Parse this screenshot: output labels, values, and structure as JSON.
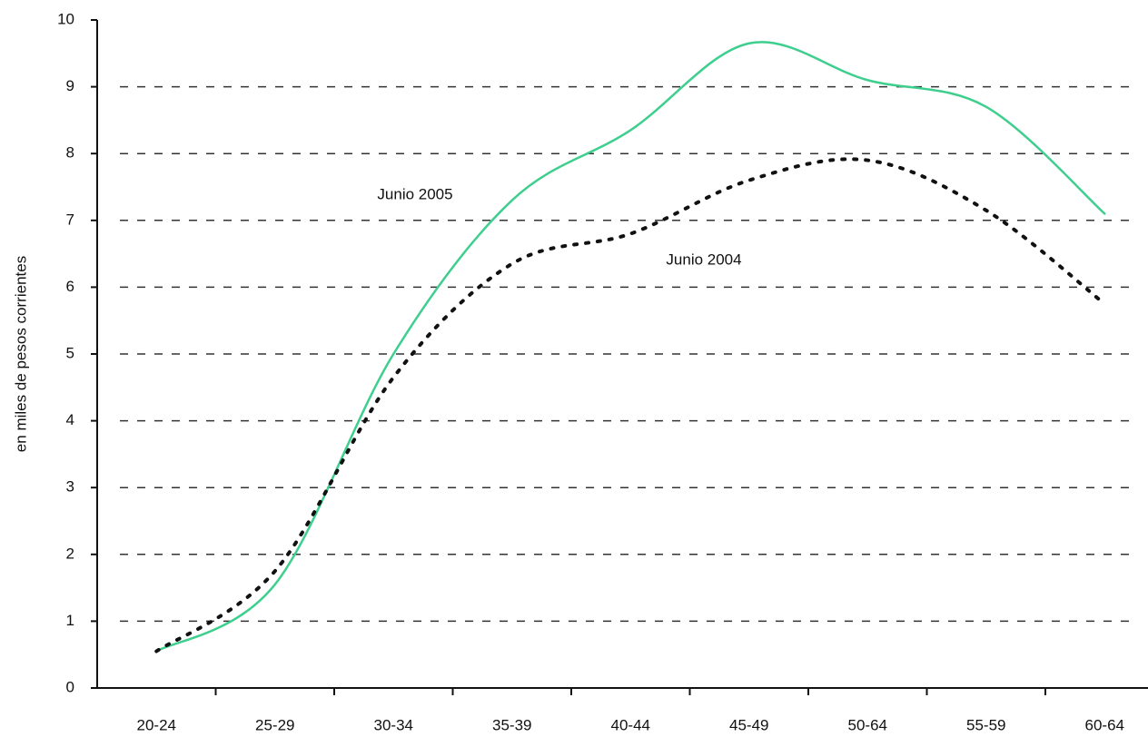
{
  "chart_data": {
    "type": "line",
    "y_label": "en miles de pesos corrientes",
    "categories": [
      "20-24",
      "25-29",
      "30-34",
      "35-39",
      "40-44",
      "45-49",
      "50-64",
      "55-59",
      "60-64"
    ],
    "series": [
      {
        "name": "Junio 2005",
        "color": "#3ecf8e",
        "style": "solid",
        "values": [
          0.55,
          1.55,
          5.0,
          7.3,
          8.35,
          9.65,
          9.1,
          8.7,
          7.1
        ]
      },
      {
        "name": "Junio 2004",
        "color": "#111111",
        "style": "dotted",
        "values": [
          0.55,
          1.75,
          4.65,
          6.35,
          6.8,
          7.6,
          7.9,
          7.15,
          5.75
        ]
      }
    ],
    "ylim": [
      0,
      10
    ],
    "yticks": [
      0,
      1,
      2,
      3,
      4,
      5,
      6,
      7,
      8,
      9,
      10
    ],
    "grid": true
  }
}
